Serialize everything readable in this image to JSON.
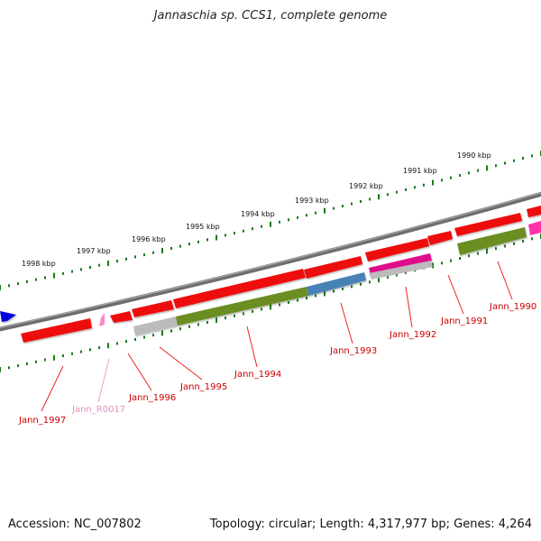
{
  "title": "Jannaschia sp. CCS1, complete genome",
  "footer": {
    "accession": "Accession: NC_007802",
    "summary": "Topology: circular; Length: 4,317,977 bp; Genes: 4,264"
  },
  "colors": {
    "cds": "#ee1111",
    "rna": "#ff88cc",
    "magenta": "#e0108a",
    "olive": "#6b8e23",
    "steelblue": "#4682b4",
    "grey": "#bbbbbb",
    "blue": "#0000dd",
    "tick": "#1b7a1b",
    "backbone": "#777777"
  },
  "kbp_labels": [
    "1998 kbp",
    "1997 kbp",
    "1996 kbp",
    "1995 kbp",
    "1994 kbp",
    "1993 kbp",
    "1992 kbp",
    "1991 kbp",
    "1990 kbp"
  ],
  "gene_labels": [
    "Jann_1997",
    "Jann_R0017",
    "Jann_1996",
    "Jann_1995",
    "Jann_1994",
    "Jann_1993",
    "Jann_1992",
    "Jann_1991",
    "Jann_1990"
  ]
}
